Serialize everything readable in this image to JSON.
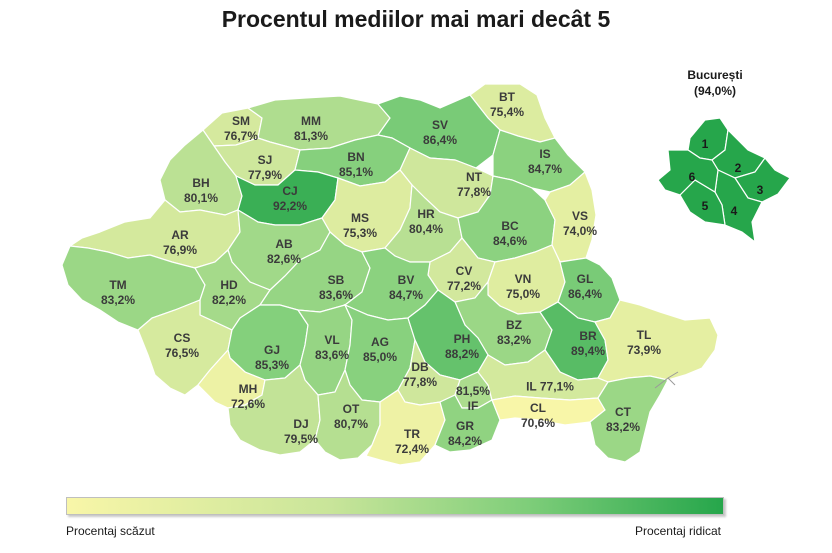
{
  "title": "Procentul mediilor mai mari decât 5",
  "colors": {
    "low": "#f8f6a8",
    "high": "#26a64b",
    "border": "#ffffff"
  },
  "scale": {
    "min": 70.6,
    "max": 94.0
  },
  "counties": [
    {
      "code": "SM",
      "value": "76,7%",
      "v": 76.7
    },
    {
      "code": "MM",
      "value": "81,3%",
      "v": 81.3
    },
    {
      "code": "BT",
      "value": "75,4%",
      "v": 75.4
    },
    {
      "code": "SV",
      "value": "86,4%",
      "v": 86.4
    },
    {
      "code": "SJ",
      "value": "77,9%",
      "v": 77.9
    },
    {
      "code": "BN",
      "value": "85,1%",
      "v": 85.1
    },
    {
      "code": "IS",
      "value": "84,7%",
      "v": 84.7
    },
    {
      "code": "BH",
      "value": "80,1%",
      "v": 80.1
    },
    {
      "code": "CJ",
      "value": "92,2%",
      "v": 92.2
    },
    {
      "code": "NT",
      "value": "77,8%",
      "v": 77.8
    },
    {
      "code": "MS",
      "value": "75,3%",
      "v": 75.3
    },
    {
      "code": "HR",
      "value": "80,4%",
      "v": 80.4
    },
    {
      "code": "BC",
      "value": "84,6%",
      "v": 84.6
    },
    {
      "code": "VS",
      "value": "74,0%",
      "v": 74.0
    },
    {
      "code": "AR",
      "value": "76,9%",
      "v": 76.9
    },
    {
      "code": "AB",
      "value": "82,6%",
      "v": 82.6
    },
    {
      "code": "CV",
      "value": "77,2%",
      "v": 77.2
    },
    {
      "code": "VN",
      "value": "75,0%",
      "v": 75.0
    },
    {
      "code": "GL",
      "value": "86,4%",
      "v": 86.4
    },
    {
      "code": "TM",
      "value": "83,2%",
      "v": 83.2
    },
    {
      "code": "HD",
      "value": "82,2%",
      "v": 82.2
    },
    {
      "code": "SB",
      "value": "83,6%",
      "v": 83.6
    },
    {
      "code": "BV",
      "value": "84,7%",
      "v": 84.7
    },
    {
      "code": "BZ",
      "value": "83,2%",
      "v": 83.2
    },
    {
      "code": "BR",
      "value": "89,4%",
      "v": 89.4
    },
    {
      "code": "TL",
      "value": "73,9%",
      "v": 73.9
    },
    {
      "code": "CS",
      "value": "76,5%",
      "v": 76.5
    },
    {
      "code": "GJ",
      "value": "85,3%",
      "v": 85.3
    },
    {
      "code": "VL",
      "value": "83,6%",
      "v": 83.6
    },
    {
      "code": "AG",
      "value": "85,0%",
      "v": 85.0
    },
    {
      "code": "PH",
      "value": "88,2%",
      "v": 88.2
    },
    {
      "code": "DB",
      "value": "77,8%",
      "v": 77.8
    },
    {
      "code": "IF",
      "value": "81,5%",
      "v": 81.5
    },
    {
      "code": "IL",
      "value": "77,1%",
      "v": 77.1
    },
    {
      "code": "MH",
      "value": "72,6%",
      "v": 72.6
    },
    {
      "code": "DJ",
      "value": "79,5%",
      "v": 79.5
    },
    {
      "code": "OT",
      "value": "80,7%",
      "v": 80.7
    },
    {
      "code": "TR",
      "value": "72,4%",
      "v": 72.4
    },
    {
      "code": "GR",
      "value": "84,2%",
      "v": 84.2
    },
    {
      "code": "CL",
      "value": "70,6%",
      "v": 70.6
    },
    {
      "code": "CT",
      "value": "83,2%",
      "v": 83.2
    }
  ],
  "bucharest": {
    "name": "București",
    "value": "(94,0%)",
    "v": 94.0,
    "sectors": [
      "1",
      "2",
      "3",
      "4",
      "5",
      "6"
    ]
  },
  "legend": {
    "low": "Procentaj scăzut",
    "high": "Procentaj ridicat"
  }
}
